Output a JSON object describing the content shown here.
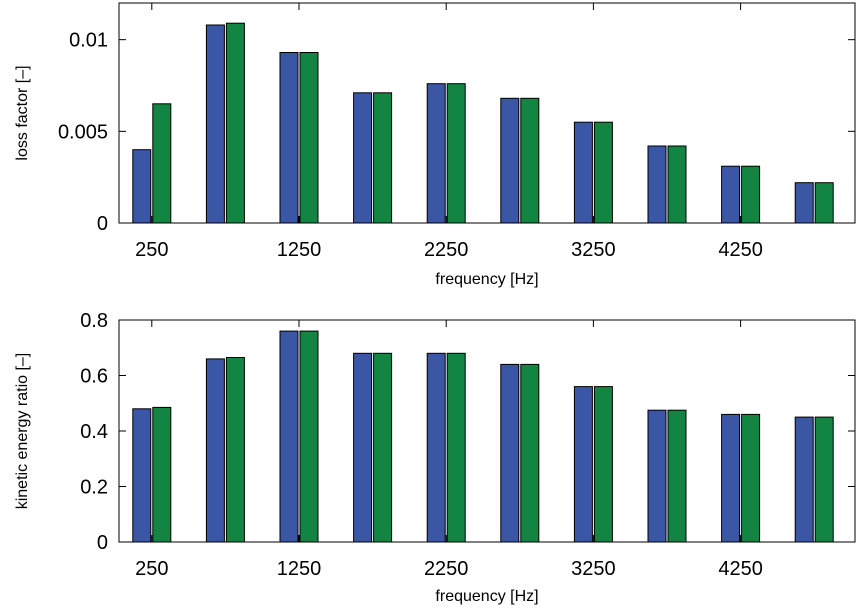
{
  "chart_data": [
    {
      "type": "bar",
      "categories": [
        "250",
        "750",
        "1250",
        "1750",
        "2250",
        "2750",
        "3250",
        "3750",
        "4250",
        "4750"
      ],
      "xlabel": "frequency [Hz]",
      "ylabel": "loss factor [–]",
      "ylim": [
        0,
        0.012
      ],
      "yticks": [
        "0",
        "0.005",
        "0.01"
      ],
      "ytick_values": [
        0,
        0.005,
        0.01
      ],
      "xticks": [
        "250",
        "1250",
        "2250",
        "3250",
        "4250"
      ],
      "grid": false,
      "series": [
        {
          "color": "#3a56a5",
          "values": [
            0.004,
            0.0108,
            0.0093,
            0.0071,
            0.0076,
            0.0068,
            0.0055,
            0.0042,
            0.0031,
            0.0022
          ]
        },
        {
          "color": "#128542",
          "values": [
            0.0065,
            0.0109,
            0.0093,
            0.0071,
            0.0076,
            0.0068,
            0.0055,
            0.0042,
            0.0031,
            0.0022
          ]
        }
      ]
    },
    {
      "type": "bar",
      "categories": [
        "250",
        "750",
        "1250",
        "1750",
        "2250",
        "2750",
        "3250",
        "3750",
        "4250",
        "4750"
      ],
      "xlabel": "frequency [Hz]",
      "ylabel": "kinetic energy ratio [–]",
      "ylim": [
        0,
        0.8
      ],
      "yticks": [
        "0",
        "0.2",
        "0.4",
        "0.6",
        "0.8"
      ],
      "ytick_values": [
        0,
        0.2,
        0.4,
        0.6,
        0.8
      ],
      "xticks": [
        "250",
        "1250",
        "2250",
        "3250",
        "4250"
      ],
      "grid": false,
      "series": [
        {
          "color": "#3a56a5",
          "values": [
            0.48,
            0.66,
            0.76,
            0.68,
            0.68,
            0.64,
            0.56,
            0.475,
            0.46,
            0.45
          ]
        },
        {
          "color": "#128542",
          "values": [
            0.485,
            0.665,
            0.76,
            0.68,
            0.68,
            0.64,
            0.56,
            0.475,
            0.46,
            0.45
          ]
        }
      ]
    }
  ]
}
